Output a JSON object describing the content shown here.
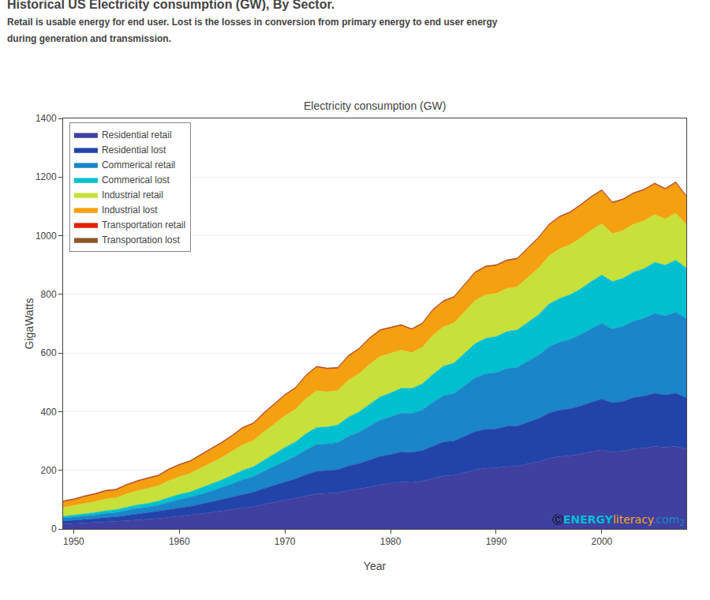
{
  "chart_data": {
    "type": "area",
    "stacked": true,
    "title": "Historical US Electricity consumption (GW), By Sector.",
    "subtitle": "Retail is usable energy for end user. Lost is the losses in conversion from primary energy to end user energy\nduring generation and transmission.",
    "annotations": [
      {
        "text": "Electricity consumption (GW)"
      },
      {
        "text": "Ⓒ",
        "color": "#000000"
      },
      {
        "text": "ENERGY",
        "color": "#00bcd4"
      },
      {
        "text": "literacy",
        "color": "#f5a623"
      },
      {
        "text": ".com",
        "color": "#1a8ac4"
      },
      {
        "text": "2",
        "color": "#1a8ac4"
      }
    ],
    "xlabel": "Year",
    "ylabel": "GigaWatts",
    "x": [
      1949,
      1950,
      1951,
      1952,
      1953,
      1954,
      1955,
      1956,
      1957,
      1958,
      1959,
      1960,
      1961,
      1962,
      1963,
      1964,
      1965,
      1966,
      1967,
      1968,
      1969,
      1970,
      1971,
      1972,
      1973,
      1974,
      1975,
      1976,
      1977,
      1978,
      1979,
      1980,
      1981,
      1982,
      1983,
      1984,
      1985,
      1986,
      1987,
      1988,
      1989,
      1990,
      1991,
      1992,
      1993,
      1994,
      1995,
      1996,
      1997,
      1998,
      1999,
      2000,
      2001,
      2002,
      2003,
      2004,
      2005,
      2006,
      2007,
      2008
    ],
    "series": [
      {
        "name": "Residential retail",
        "color": "#4040a0",
        "values": [
          17,
          18,
          20,
          22,
          24,
          25,
          28,
          31,
          33,
          36,
          40,
          44,
          47,
          52,
          56,
          61,
          66,
          72,
          76,
          84,
          91,
          98,
          104,
          113,
          120,
          121,
          123,
          131,
          136,
          143,
          151,
          155,
          160,
          159,
          163,
          172,
          181,
          183,
          193,
          202,
          207,
          208,
          213,
          214,
          222,
          229,
          241,
          247,
          250,
          255,
          263,
          270,
          262,
          265,
          273,
          276,
          282,
          278,
          282,
          272
        ]
      },
      {
        "name": "Residential lost",
        "color": "#2244aa",
        "values": [
          10,
          11,
          12,
          13,
          15,
          16,
          18,
          20,
          21,
          23,
          26,
          28,
          30,
          33,
          36,
          39,
          43,
          46,
          49,
          54,
          58,
          63,
          67,
          72,
          77,
          78,
          79,
          84,
          87,
          92,
          97,
          99,
          103,
          102,
          104,
          110,
          116,
          117,
          124,
          130,
          133,
          133,
          137,
          137,
          142,
          147,
          155,
          158,
          160,
          164,
          169,
          173,
          168,
          170,
          175,
          177,
          181,
          179,
          181,
          175
        ]
      },
      {
        "name": "Commerical retail",
        "color": "#1a85c8",
        "values": [
          10,
          11,
          12,
          13,
          14,
          15,
          17,
          19,
          20,
          22,
          25,
          28,
          30,
          33,
          37,
          41,
          45,
          50,
          53,
          59,
          65,
          71,
          77,
          85,
          91,
          91,
          93,
          101,
          107,
          116,
          123,
          128,
          132,
          133,
          139,
          149,
          157,
          162,
          172,
          183,
          189,
          192,
          197,
          200,
          208,
          216,
          226,
          232,
          237,
          244,
          251,
          258,
          252,
          256,
          261,
          265,
          272,
          270,
          277,
          270
        ]
      },
      {
        "name": "Commerical lost",
        "color": "#00c0d0",
        "values": [
          6,
          7,
          8,
          8,
          9,
          10,
          11,
          12,
          13,
          14,
          16,
          18,
          19,
          21,
          24,
          26,
          29,
          32,
          34,
          38,
          42,
          46,
          49,
          55,
          58,
          58,
          60,
          65,
          69,
          74,
          79,
          82,
          85,
          85,
          89,
          96,
          101,
          104,
          110,
          117,
          121,
          123,
          126,
          128,
          133,
          138,
          145,
          149,
          152,
          156,
          161,
          165,
          162,
          164,
          167,
          170,
          174,
          173,
          177,
          173
        ]
      },
      {
        "name": "Industrial retail",
        "color": "#c8e03a",
        "values": [
          30,
          32,
          35,
          37,
          40,
          40,
          45,
          48,
          51,
          52,
          57,
          60,
          63,
          67,
          72,
          76,
          81,
          87,
          89,
          96,
          102,
          108,
          111,
          120,
          125,
          120,
          117,
          126,
          130,
          136,
          138,
          134,
          130,
          122,
          124,
          133,
          134,
          136,
          141,
          147,
          148,
          147,
          147,
          147,
          153,
          159,
          164,
          169,
          170,
          173,
          175,
          175,
          163,
          163,
          163,
          163,
          163,
          157,
          160,
          148
        ]
      },
      {
        "name": "Industrial lost",
        "color": "#f5a010",
        "values": [
          19,
          20,
          22,
          24,
          26,
          26,
          29,
          31,
          33,
          33,
          37,
          39,
          40,
          43,
          46,
          49,
          52,
          56,
          57,
          62,
          65,
          69,
          71,
          77,
          80,
          77,
          75,
          81,
          83,
          87,
          88,
          86,
          83,
          78,
          80,
          85,
          86,
          87,
          90,
          94,
          95,
          94,
          94,
          94,
          98,
          102,
          105,
          108,
          109,
          111,
          112,
          112,
          104,
          104,
          104,
          104,
          104,
          101,
          103,
          95
        ]
      },
      {
        "name": "Transportation retail",
        "color": "#e02000",
        "values": [
          2,
          2,
          2,
          2,
          2,
          2,
          2,
          2,
          2,
          2,
          2,
          2,
          2,
          2,
          2,
          2,
          2,
          2,
          2,
          2,
          2,
          2,
          2,
          2,
          2,
          2,
          2,
          2,
          2,
          2,
          2,
          2,
          2,
          2,
          2,
          2,
          2,
          2,
          2,
          2,
          2,
          2,
          2,
          2,
          2,
          2,
          2,
          2,
          2,
          2,
          2,
          2,
          2,
          2,
          2,
          2,
          2,
          2,
          2,
          2
        ]
      },
      {
        "name": "Transportation lost",
        "color": "#8b5a2b",
        "values": [
          2,
          2,
          2,
          2,
          2,
          2,
          2,
          2,
          2,
          2,
          2,
          2,
          2,
          2,
          2,
          2,
          2,
          2,
          2,
          2,
          2,
          2,
          2,
          2,
          2,
          2,
          2,
          2,
          2,
          2,
          2,
          2,
          2,
          2,
          2,
          2,
          2,
          2,
          2,
          2,
          2,
          2,
          2,
          2,
          2,
          2,
          2,
          2,
          2,
          2,
          2,
          2,
          2,
          2,
          2,
          2,
          2,
          2,
          2,
          2
        ]
      }
    ],
    "xlim": [
      1949,
      2008
    ],
    "xticks": [
      1950,
      1960,
      1970,
      1980,
      1990,
      2000
    ],
    "ylim": [
      0,
      1400
    ],
    "yticks": [
      0,
      200,
      400,
      600,
      800,
      1000,
      1200,
      1400
    ],
    "grid": "y",
    "legend": "upper left"
  }
}
